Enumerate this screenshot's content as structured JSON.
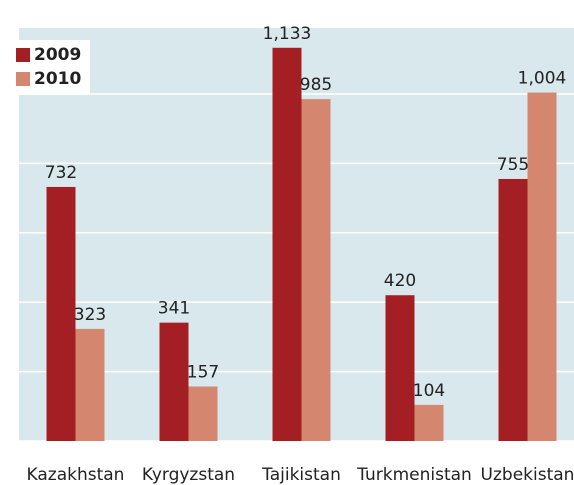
{
  "chart_data": {
    "type": "bar",
    "categories": [
      "Kazakhstan",
      "Kyrgyzstan",
      "Tajikistan",
      "Turkmenistan",
      "Uzbekistan"
    ],
    "series": [
      {
        "name": "2009",
        "color": "#a31f24",
        "values": [
          732,
          341,
          1133,
          420,
          755
        ],
        "value_labels": [
          "732",
          "341",
          "1,133",
          "420",
          "755"
        ]
      },
      {
        "name": "2010",
        "color": "#d4866f",
        "values": [
          323,
          157,
          985,
          104,
          1004
        ],
        "value_labels": [
          "323",
          "157",
          "985",
          "104",
          "1,004"
        ]
      }
    ],
    "ylim": [
      0,
      1190
    ],
    "yticks": [
      0,
      200,
      400,
      600,
      800,
      1000
    ],
    "grid": true,
    "legend": "upper left"
  }
}
